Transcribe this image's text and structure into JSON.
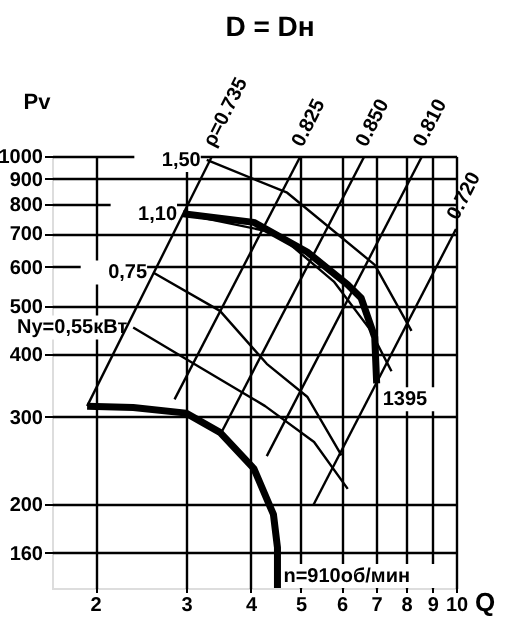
{
  "chart_data": {
    "type": "line",
    "title": "D = Dн",
    "xlabel": "Q",
    "ylabel": "Pv",
    "log": "xy",
    "grid": true,
    "xlim": [
      1.65,
      10
    ],
    "ylim": [
      136,
      1000
    ],
    "xticks": [
      2,
      3,
      4,
      5,
      6,
      7,
      8,
      9,
      10
    ],
    "yticks": [
      160,
      200,
      300,
      400,
      500,
      600,
      700,
      800,
      900,
      1000
    ],
    "series": [
      {
        "name": "n=910об/мин",
        "color": "#000000",
        "x": [
          1.93,
          2.37,
          3.0,
          3.49,
          4.06,
          4.43,
          4.51,
          4.51
        ],
        "values": [
          315,
          313,
          305,
          279,
          236,
          191,
          164,
          136
        ]
      },
      {
        "name": "1395",
        "color": "#000000",
        "x": [
          2.96,
          4.06,
          5.15,
          6.17,
          6.55,
          6.96,
          7.02
        ],
        "values": [
          766,
          736,
          642,
          552,
          519,
          433,
          350
        ]
      },
      {
        "name": "Ny=0,55кВт",
        "color": "#000000",
        "x": [
          2.37,
          3.19,
          4.27,
          5.31,
          6.17
        ],
        "values": [
          453,
          377,
          315,
          267,
          215
        ]
      },
      {
        "name": "0,75",
        "color": "#000000",
        "x": [
          2.59,
          3.49,
          4.3,
          5.15,
          6.0
        ],
        "values": [
          584,
          489,
          383,
          329,
          251
        ]
      },
      {
        "name": "1,10",
        "color": "#000000",
        "x": [
          2.96,
          4.5,
          5.8,
          6.8,
          7.5
        ],
        "values": [
          766,
          700,
          560,
          450,
          370
        ]
      },
      {
        "name": "1,50",
        "color": "#000000",
        "x": [
          3.29,
          4.71,
          6.96,
          8.2
        ],
        "values": [
          982,
          844,
          605,
          446
        ]
      },
      {
        "name": "ρ=0.735",
        "color": "#000000",
        "x": [
          1.93,
          3.37
        ],
        "values": [
          315,
          1000
        ]
      },
      {
        "name": "0.825",
        "color": "#000000",
        "x": [
          2.85,
          5.0
        ],
        "values": [
          325,
          1000
        ]
      },
      {
        "name": "0.850",
        "color": "#000000",
        "x": [
          3.5,
          6.65
        ],
        "values": [
          277,
          1000
        ]
      },
      {
        "name": "0.810",
        "color": "#000000",
        "x": [
          4.3,
          8.6
        ],
        "values": [
          250,
          1000
        ]
      },
      {
        "name": "0.720",
        "color": "#000000",
        "x": [
          5.3,
          10
        ],
        "values": [
          200,
          714
        ]
      }
    ]
  }
}
